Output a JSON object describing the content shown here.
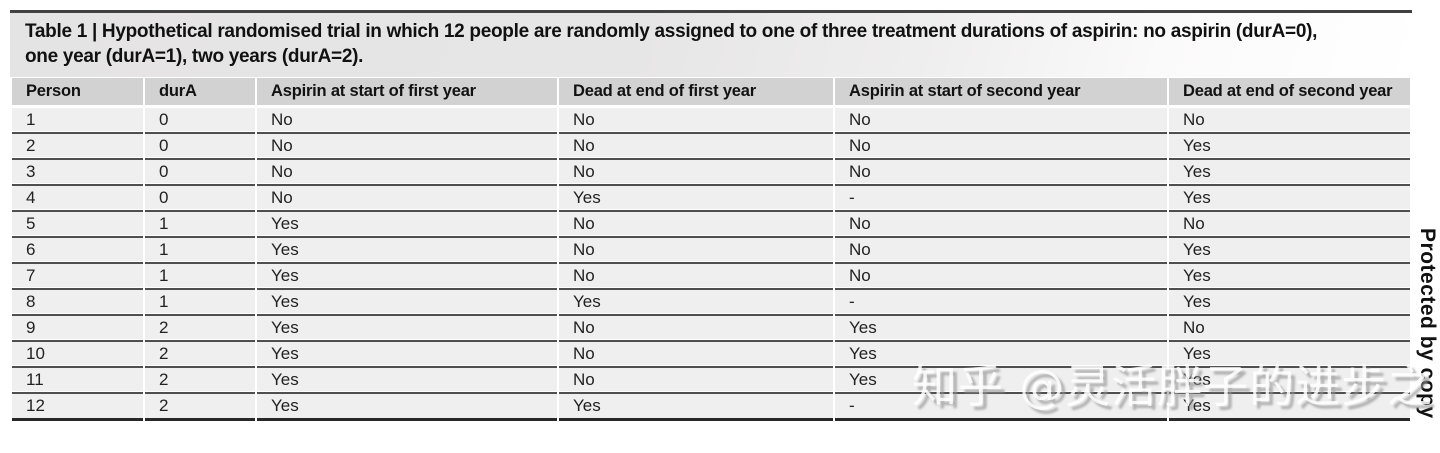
{
  "table": {
    "title": {
      "line1": "Table 1 | Hypothetical randomised trial in which 12 people are randomly assigned to one of three treatment durations of aspirin: no aspirin (durA=0),",
      "line2": "one year (durA=1), two years (durA=2)."
    },
    "columns": [
      "Person",
      "durA",
      "Aspirin at start of first year",
      "Dead at end of first year",
      "Aspirin at start of second year",
      "Dead at end of second year"
    ],
    "rows": [
      [
        "1",
        "0",
        "No",
        "No",
        "No",
        "No"
      ],
      [
        "2",
        "0",
        "No",
        "No",
        "No",
        "Yes"
      ],
      [
        "3",
        "0",
        "No",
        "No",
        "No",
        "Yes"
      ],
      [
        "4",
        "0",
        "No",
        "Yes",
        "-",
        "Yes"
      ],
      [
        "5",
        "1",
        "Yes",
        "No",
        "No",
        "No"
      ],
      [
        "6",
        "1",
        "Yes",
        "No",
        "No",
        "Yes"
      ],
      [
        "7",
        "1",
        "Yes",
        "No",
        "No",
        "Yes"
      ],
      [
        "8",
        "1",
        "Yes",
        "Yes",
        "-",
        "Yes"
      ],
      [
        "9",
        "2",
        "Yes",
        "No",
        "Yes",
        "No"
      ],
      [
        "10",
        "2",
        "Yes",
        "No",
        "Yes",
        "Yes"
      ],
      [
        "11",
        "2",
        "Yes",
        "No",
        "Yes",
        "Yes"
      ],
      [
        "12",
        "2",
        "Yes",
        "Yes",
        "-",
        "Yes"
      ]
    ]
  },
  "watermark": {
    "text": "知乎 @灵活胖子的进步之"
  },
  "edge_note": {
    "text": "Protected by copy"
  },
  "colors": {
    "title_bg": "#e6e5e5",
    "header_bg": "#d3d2d2",
    "row_bg": "#f0efef",
    "top_rule": "#414141",
    "row_line": "#4f4f4f",
    "bottom_rule": "#282828",
    "text": "#1a1a1a",
    "watermark_text": "#ffffff"
  }
}
